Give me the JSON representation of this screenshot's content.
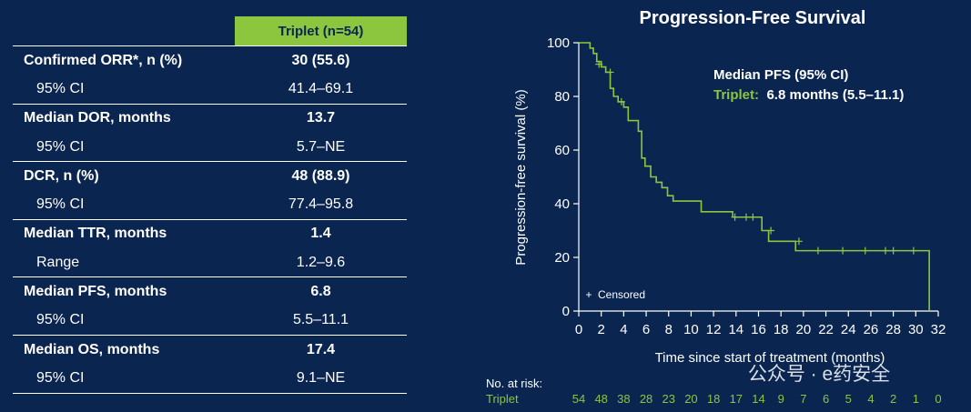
{
  "table": {
    "column_header": "Triplet (n=54)",
    "rows": [
      {
        "label": "Confirmed ORR*, n (%)",
        "value": "30 (55.6)",
        "kind": "main"
      },
      {
        "label": "95% CI",
        "value": "41.4–69.1",
        "kind": "sub"
      },
      {
        "label": "Median DOR, months",
        "value": "13.7",
        "kind": "main"
      },
      {
        "label": "95% CI",
        "value": "5.7–NE",
        "kind": "sub"
      },
      {
        "label": "DCR, n (%)",
        "value": "48 (88.9)",
        "kind": "main"
      },
      {
        "label": "95% CI",
        "value": "77.4–95.8",
        "kind": "sub"
      },
      {
        "label": "Median TTR, months",
        "value": "1.4",
        "kind": "main"
      },
      {
        "label": "Range",
        "value": "1.2–9.6",
        "kind": "sub"
      },
      {
        "label": "Median PFS, months",
        "value": "6.8",
        "kind": "main"
      },
      {
        "label": "95% CI",
        "value": "5.5–11.1",
        "kind": "sub"
      },
      {
        "label": "Median OS, months",
        "value": "17.4",
        "kind": "main"
      },
      {
        "label": "95% CI",
        "value": "9.1–NE",
        "kind": "sub"
      }
    ]
  },
  "chart_data": {
    "type": "line",
    "title": "Progression-Free Survival",
    "xlabel": "Time since start of treatment (months)",
    "ylabel": "Progression-free survival (%)",
    "xlim": [
      0,
      32
    ],
    "ylim": [
      0,
      100
    ],
    "xticks": [
      0,
      2,
      4,
      6,
      8,
      10,
      12,
      14,
      16,
      18,
      20,
      22,
      24,
      26,
      28,
      30,
      32
    ],
    "yticks": [
      0,
      20,
      40,
      60,
      80,
      100
    ],
    "grid": false,
    "line_color": "#8cc63f",
    "annotation": {
      "heading": "Median PFS (95% CI)",
      "series_label": "Triplet:",
      "series_value": "6.8 months (5.5–11.1)"
    },
    "legend": {
      "symbol": "+",
      "label": "Censored",
      "placement": "bottom-left"
    },
    "series": [
      {
        "step_x": [
          0,
          1.0,
          1.3,
          1.6,
          2.0,
          2.4,
          2.8,
          3.1,
          3.5,
          4.0,
          4.4,
          5.3,
          5.6,
          5.9,
          6.4,
          6.9,
          7.4,
          7.9,
          8.4,
          10.9,
          13.7,
          16.3,
          16.9,
          19.3,
          31.2,
          31.2
        ],
        "step_y": [
          100,
          98,
          96,
          93,
          91,
          89,
          83,
          80,
          78,
          76,
          71,
          67,
          57,
          54,
          50,
          48,
          46,
          43,
          41,
          37,
          35,
          30,
          26,
          22.5,
          22.5,
          0
        ],
        "censored_x": [
          1.8,
          2.8,
          3.8,
          13.9,
          14.9,
          15.5,
          17.1,
          19.6,
          21.3,
          23.5,
          25.5,
          27.3,
          28.0,
          29.8
        ],
        "censored_y": [
          92,
          89,
          78,
          35,
          35,
          35,
          30,
          26,
          22.5,
          22.5,
          22.5,
          22.5,
          22.5,
          22.5
        ]
      }
    ],
    "at_risk": {
      "header": "No. at risk:",
      "label": "Triplet",
      "times": [
        0,
        2,
        4,
        6,
        8,
        10,
        12,
        14,
        16,
        18,
        20,
        22,
        24,
        26,
        28,
        30,
        32
      ],
      "counts": [
        "54",
        "48",
        "38",
        "28",
        "23",
        "20",
        "18",
        "17",
        "14",
        "9",
        "7",
        "6",
        "5",
        "4",
        "2",
        "1",
        "0"
      ]
    }
  },
  "watermark": "公众号 · e药安全"
}
